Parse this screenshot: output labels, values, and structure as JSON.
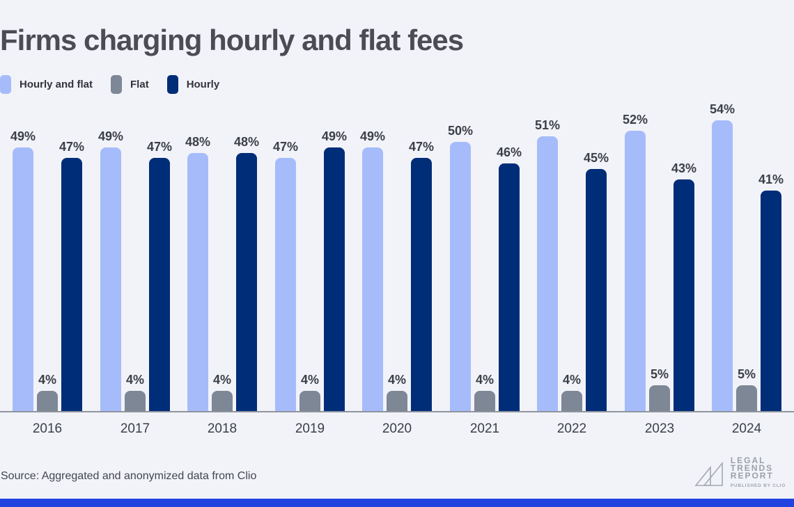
{
  "chart_data": {
    "type": "bar",
    "title": "Firms charging hourly and flat fees",
    "categories": [
      "2016",
      "2017",
      "2018",
      "2019",
      "2020",
      "2021",
      "2022",
      "2023",
      "2024"
    ],
    "series": [
      {
        "name": "Hourly and flat",
        "color": "#a6bcfa",
        "values": [
          49,
          49,
          48,
          47,
          49,
          50,
          51,
          52,
          54
        ]
      },
      {
        "name": "Flat",
        "color": "#7d8795",
        "values": [
          4,
          4,
          4,
          4,
          4,
          4,
          4,
          5,
          5
        ]
      },
      {
        "name": "Hourly",
        "color": "#002d78",
        "values": [
          47,
          47,
          48,
          49,
          47,
          46,
          45,
          43,
          41
        ]
      }
    ],
    "value_suffix": "%",
    "ylim": [
      0,
      57
    ],
    "grid": false,
    "legend_position": "top-left",
    "xlabel": "",
    "ylabel": ""
  },
  "footer": {
    "source": "Source: Aggregated and anonymized data from Clio",
    "logo": {
      "line1": "LEGAL",
      "line2": "TRENDS",
      "line3": "REPORT",
      "tagline": "PUBLISHED BY CLIO"
    }
  },
  "colors": {
    "background": "#f2f3f9",
    "title_text": "#4b4c54",
    "label_text": "#3b3f46",
    "axis_line": "#8f949c",
    "logo_gray": "#9aa0a8",
    "bottom_bar": "#2144e1"
  }
}
